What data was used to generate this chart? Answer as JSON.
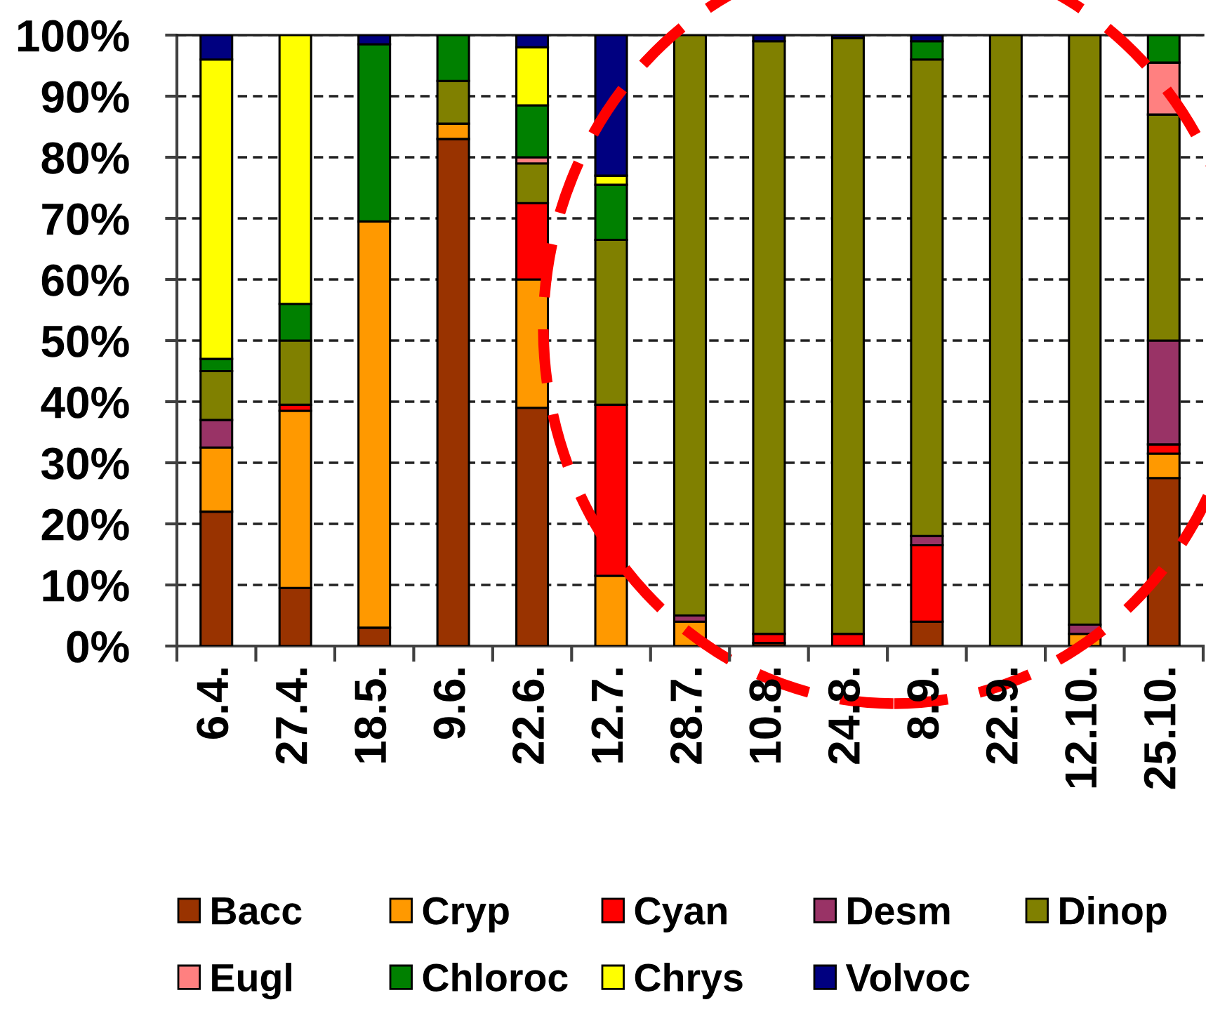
{
  "chart_data": {
    "type": "bar",
    "stacked": true,
    "categories": [
      "6.4.",
      "27.4.",
      "18.5.",
      "9.6.",
      "22.6.",
      "12.7.",
      "28.7.",
      "10.8.",
      "24.8.",
      "8.9.",
      "22.9.",
      "12.10.",
      "25.10."
    ],
    "series": [
      {
        "name": "Bacc",
        "color": "#993300",
        "values": [
          22,
          9.5,
          3,
          83,
          39,
          null,
          null,
          0.5,
          null,
          4,
          null,
          null,
          27.5
        ]
      },
      {
        "name": "Cryp",
        "color": "#ff9900",
        "values": [
          10.5,
          29,
          66.5,
          2.5,
          21,
          11.5,
          4,
          null,
          null,
          null,
          null,
          2,
          4
        ]
      },
      {
        "name": "Cyan",
        "color": "#ff0000",
        "values": [
          null,
          1,
          null,
          null,
          12.5,
          28,
          null,
          1.5,
          2,
          12.5,
          null,
          null,
          1.5
        ]
      },
      {
        "name": "Desm",
        "color": "#993366",
        "values": [
          4.5,
          null,
          null,
          null,
          null,
          null,
          1,
          null,
          null,
          1.5,
          null,
          1.5,
          17
        ]
      },
      {
        "name": "Dinop",
        "color": "#808000",
        "values": [
          8,
          10.5,
          null,
          7,
          6.5,
          27,
          95,
          97,
          97.5,
          78,
          100,
          96.5,
          37
        ]
      },
      {
        "name": "Eugl",
        "color": "#ff8080",
        "values": [
          null,
          null,
          null,
          null,
          1,
          null,
          null,
          null,
          null,
          null,
          null,
          null,
          8.5
        ]
      },
      {
        "name": "Chloroc",
        "color": "#008000",
        "values": [
          2,
          6,
          29,
          7.5,
          8.5,
          9,
          null,
          null,
          null,
          3,
          null,
          null,
          4.5
        ]
      },
      {
        "name": "Chrys",
        "color": "#ffff00",
        "values": [
          49,
          44,
          null,
          null,
          9.5,
          1.5,
          null,
          null,
          null,
          null,
          null,
          null,
          null
        ]
      },
      {
        "name": "Volvoc",
        "color": "#000080",
        "values": [
          4,
          null,
          1.5,
          null,
          2,
          23,
          null,
          1,
          0.5,
          1,
          null,
          null,
          null
        ]
      }
    ],
    "ylim": [
      0,
      100
    ],
    "yticks": [
      {
        "value": 0,
        "label": "0%"
      },
      {
        "value": 10,
        "label": "10%"
      },
      {
        "value": 20,
        "label": "20%"
      },
      {
        "value": 30,
        "label": "30%"
      },
      {
        "value": 40,
        "label": "40%"
      },
      {
        "value": 50,
        "label": "50%"
      },
      {
        "value": 60,
        "label": "60%"
      },
      {
        "value": 70,
        "label": "70%"
      },
      {
        "value": 80,
        "label": "80%"
      },
      {
        "value": 90,
        "label": "90%"
      },
      {
        "value": 100,
        "label": "100%"
      }
    ],
    "grid": "y",
    "legend": "bottom"
  }
}
